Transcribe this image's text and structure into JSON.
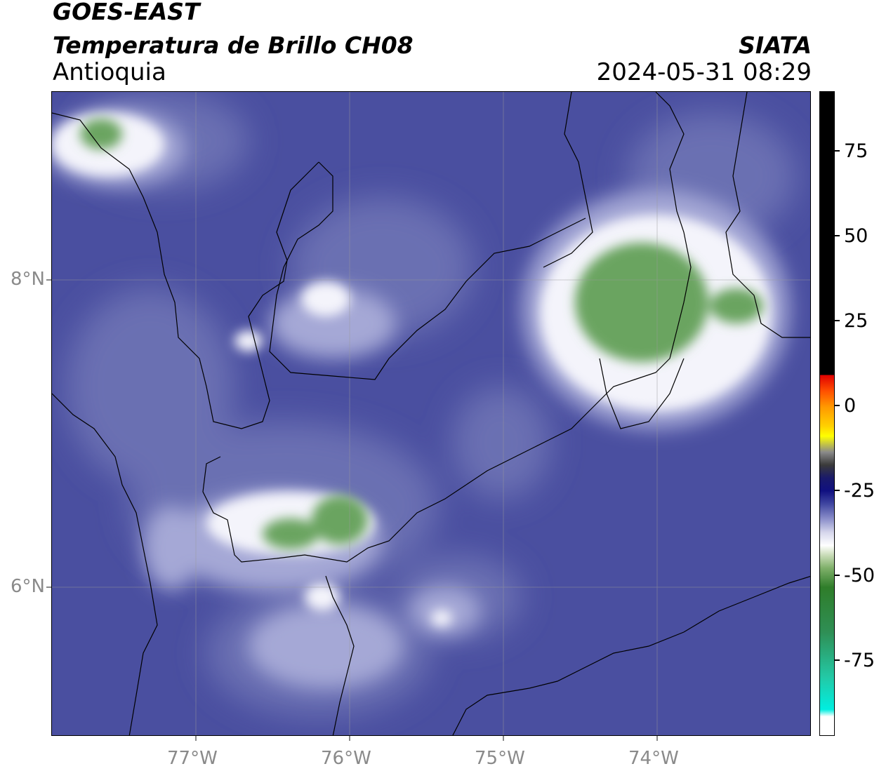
{
  "header": {
    "satellite": "GOES-EAST",
    "product": "Temperatura de Brillo CH08",
    "region": "Antioquia",
    "institution": "SIATA",
    "datetime": "2024-05-31 08:29"
  },
  "map": {
    "lon_range": [
      -77.95,
      -73.0
    ],
    "lat_range": [
      5.0,
      9.2
    ],
    "x_ticks": [
      {
        "lon": -77,
        "label": "77°W"
      },
      {
        "lon": -76,
        "label": "76°W"
      },
      {
        "lon": -75,
        "label": "75°W"
      },
      {
        "lon": -74,
        "label": "74°W"
      }
    ],
    "y_ticks": [
      {
        "lat": 8,
        "label": "8°N"
      },
      {
        "lat": 6,
        "label": "6°N"
      }
    ],
    "background_color": "#4a4fa0",
    "cold_cloud_color": "#ffffff",
    "coldest_color": "#5f9a55"
  },
  "colorbar": {
    "range": [
      -95,
      91
    ],
    "ticks": [
      {
        "value": 75,
        "label": "75"
      },
      {
        "value": 50,
        "label": "50"
      },
      {
        "value": 25,
        "label": "25"
      },
      {
        "value": 0,
        "label": "0"
      },
      {
        "value": -25,
        "label": "-25"
      },
      {
        "value": -50,
        "label": "-50"
      },
      {
        "value": -75,
        "label": "-75"
      }
    ]
  }
}
